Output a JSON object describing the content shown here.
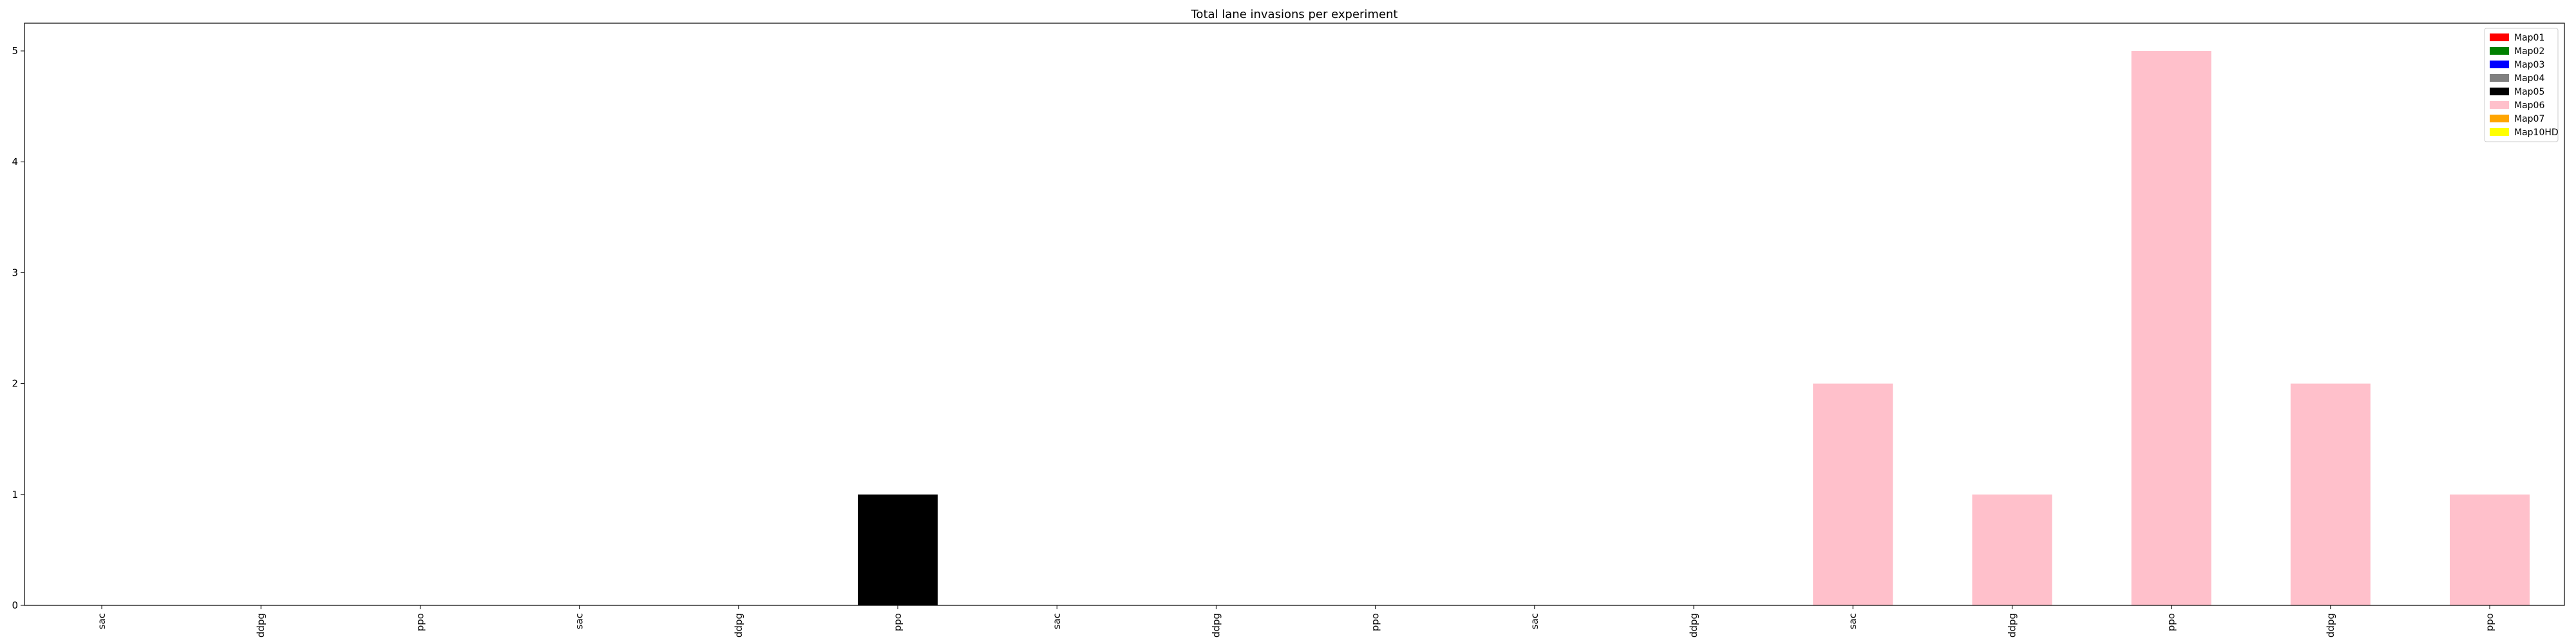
{
  "chart_data": {
    "type": "bar",
    "title": "Total lane invasions per experiment",
    "xlabel": "",
    "ylabel": "",
    "categories": [
      "sac",
      "ddpg",
      "ppo",
      "sac",
      "ddpg",
      "ppo",
      "sac",
      "ddpg",
      "ppo",
      "sac",
      "ddpg",
      "sac",
      "ddpg",
      "ppo",
      "ddpg",
      "ppo"
    ],
    "values": [
      0,
      0,
      0,
      0,
      0,
      1,
      0,
      0,
      0,
      0,
      0,
      2,
      1,
      5,
      2,
      1
    ],
    "bar_series": [
      "Map01",
      "Map01",
      "Map02",
      "Map03",
      "Map04",
      "Map05",
      "Map07",
      "Map07",
      "Map07",
      "Map10HD",
      "Map10HD",
      "Map06",
      "Map06",
      "Map06",
      "Map06",
      "Map06"
    ],
    "legend": [
      {
        "name": "Map01",
        "color": "#ff0000"
      },
      {
        "name": "Map02",
        "color": "#008000"
      },
      {
        "name": "Map03",
        "color": "#0000ff"
      },
      {
        "name": "Map04",
        "color": "#808080"
      },
      {
        "name": "Map05",
        "color": "#000000"
      },
      {
        "name": "Map06",
        "color": "#ffc0cb"
      },
      {
        "name": "Map07",
        "color": "#ffa500"
      },
      {
        "name": "Map10HD",
        "color": "#ffff00"
      }
    ],
    "yticks": [
      "0",
      "1",
      "2",
      "3",
      "4",
      "5"
    ],
    "ylim": [
      0,
      5.25
    ],
    "grid": false,
    "legend_placement": "top-right"
  }
}
